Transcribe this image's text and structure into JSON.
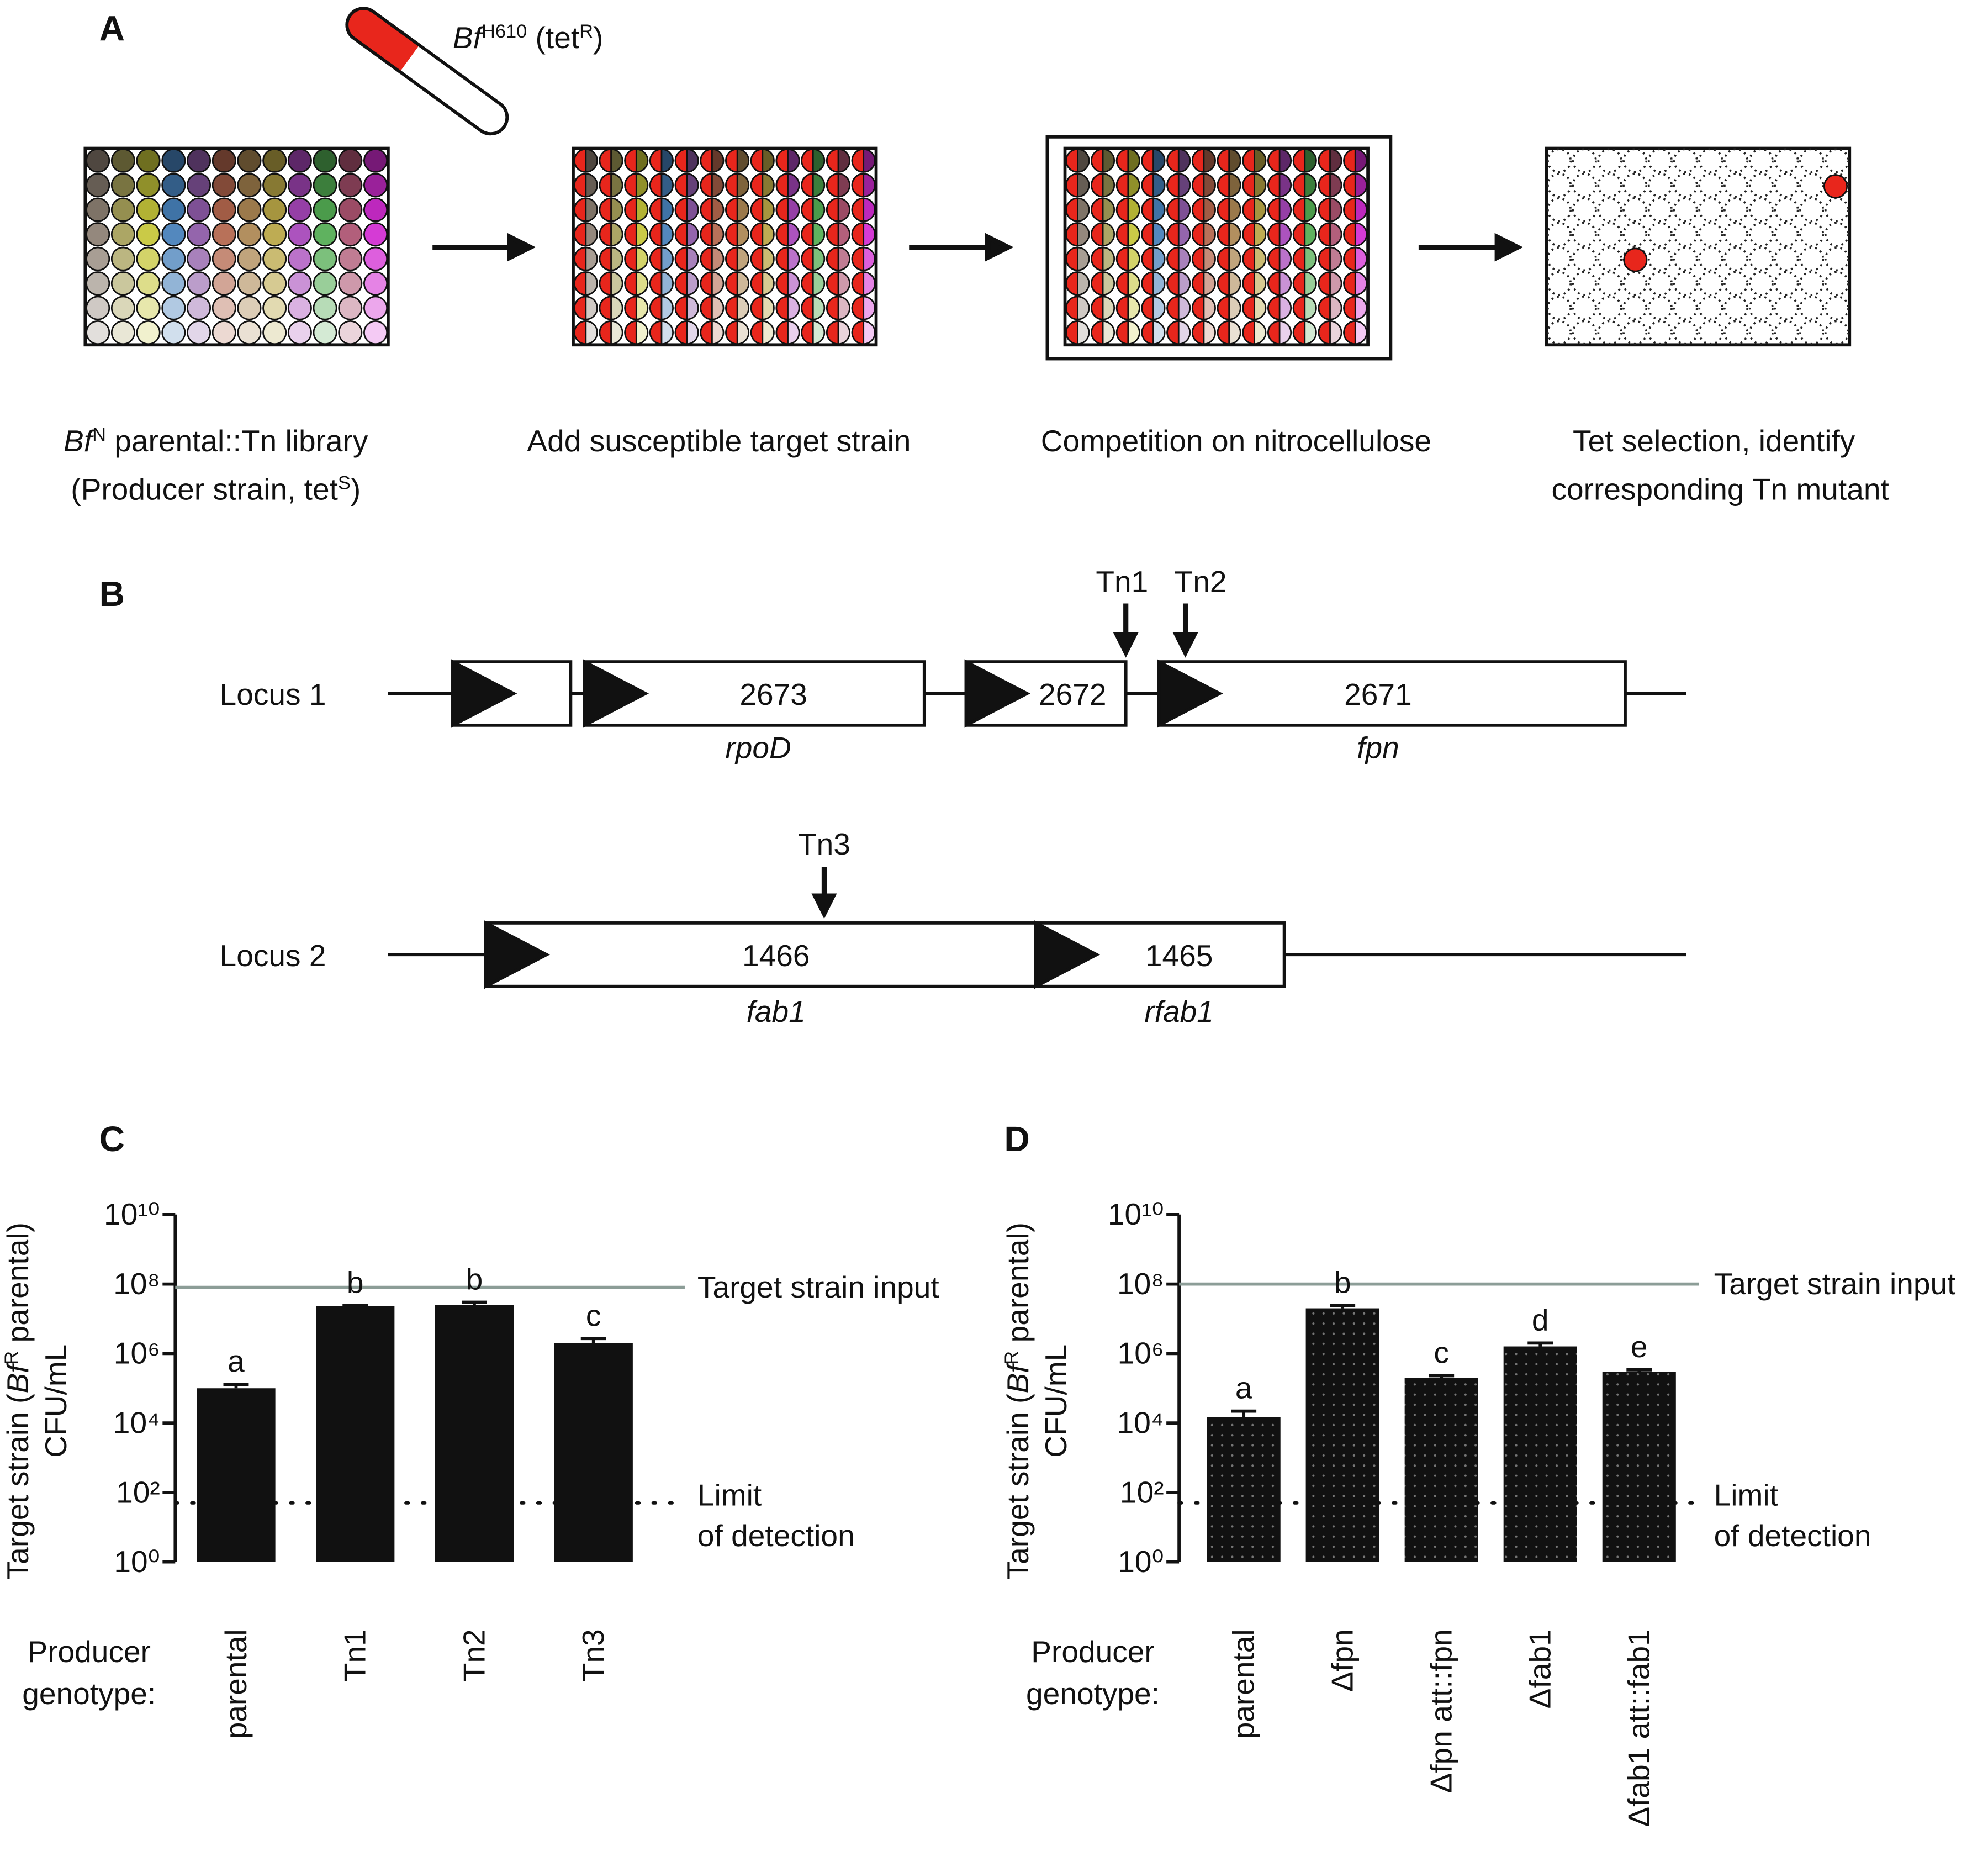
{
  "panel_a": {
    "label": "A",
    "tube": {
      "strain": "Bf",
      "strain_sup": "H610",
      "marker": " (tet",
      "marker_sup": "R",
      "close": ")"
    },
    "steps": [
      {
        "line1": [
          "Bf",
          "N",
          " parental::Tn library"
        ],
        "line2": [
          "(Producer strain, tet",
          "S",
          ")"
        ]
      },
      {
        "line1": "Add susceptible target strain"
      },
      {
        "line1": "Competition on nitrocellulose"
      },
      {
        "line1": "Tet selection, identify",
        "line2": "corresponding Tn mutant"
      }
    ]
  },
  "panel_b": {
    "label": "B",
    "loci": [
      {
        "name": "Locus 1",
        "genes": [
          {
            "id": "2673",
            "name": "rpoD"
          },
          {
            "id": "2672"
          },
          {
            "id": "2671",
            "name": "fpn"
          }
        ],
        "transposons": [
          "Tn1",
          "Tn2"
        ]
      },
      {
        "name": "Locus 2",
        "genes": [
          {
            "id": "1466",
            "name": "fab1"
          },
          {
            "id": "1465",
            "name": "rfab1"
          }
        ],
        "transposons": [
          "Tn3"
        ]
      }
    ]
  },
  "chart_data": [
    {
      "type": "bar",
      "panel": "C",
      "ylabel": {
        "line1": [
          "Target strain (",
          "Bf",
          "R",
          " parental)"
        ],
        "line2": "CFU/mL"
      },
      "xlabel": [
        "Producer",
        "genotype:"
      ],
      "categories": [
        "parental",
        "Tn1",
        "Tn2",
        "Tn3"
      ],
      "values": [
        100000,
        23000000,
        25000000,
        2000000
      ],
      "errors": [
        30000,
        1000000,
        5000000,
        700000
      ],
      "letters": [
        "a",
        "b",
        "b",
        "c"
      ],
      "color": "#111111",
      "pattern": "solid",
      "log_y": true,
      "ylim": [
        1,
        10000000000
      ],
      "yticks": [
        {
          "value": 1,
          "label": "10⁰"
        },
        {
          "value": 100,
          "label": "10²"
        },
        {
          "value": 10000,
          "label": "10⁴"
        },
        {
          "value": 1000000,
          "label": "10⁶"
        },
        {
          "value": 100000000,
          "label": "10⁸"
        },
        {
          "value": 10000000000,
          "label": "10¹⁰"
        }
      ],
      "reference_lines": [
        {
          "value": 80000000,
          "label": [
            "Target strain input"
          ],
          "color": "#8c9d97",
          "style": "solid"
        },
        {
          "value": 50,
          "label": [
            "Limit",
            "of detection"
          ],
          "color": "#111111",
          "style": "dotted"
        }
      ]
    },
    {
      "type": "bar",
      "panel": "D",
      "ylabel": {
        "line1": [
          "Target strain (",
          "Bf",
          "R",
          " parental)"
        ],
        "line2": "CFU/mL"
      },
      "xlabel": [
        "Producer",
        "genotype:"
      ],
      "categories": [
        "parental",
        "Δfpn",
        "Δfpn att::fpn",
        "Δfab1",
        "Δfab1 att::fab1"
      ],
      "values": [
        15000,
        20000000,
        200000,
        1600000,
        300000
      ],
      "errors": [
        7000,
        4000000,
        30000,
        400000,
        40000
      ],
      "letters": [
        "a",
        "b",
        "c",
        "d",
        "e"
      ],
      "color": "#111111",
      "pattern": "dots",
      "log_y": true,
      "ylim": [
        1,
        10000000000
      ],
      "yticks": [
        {
          "value": 1,
          "label": "10⁰"
        },
        {
          "value": 100,
          "label": "10²"
        },
        {
          "value": 10000,
          "label": "10⁴"
        },
        {
          "value": 1000000,
          "label": "10⁶"
        },
        {
          "value": 100000000,
          "label": "10⁸"
        },
        {
          "value": 10000000000,
          "label": "10¹⁰"
        }
      ],
      "reference_lines": [
        {
          "value": 100000000,
          "label": [
            "Target strain input"
          ],
          "color": "#8c9d97",
          "style": "solid"
        },
        {
          "value": 50,
          "label": [
            "Limit",
            "of detection"
          ],
          "color": "#111111",
          "style": "dotted"
        }
      ]
    }
  ]
}
